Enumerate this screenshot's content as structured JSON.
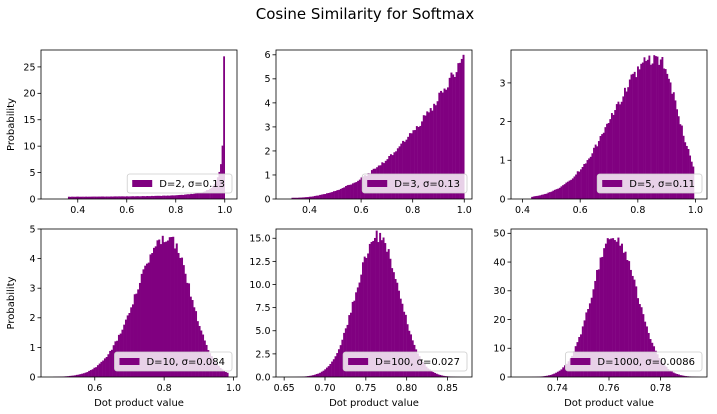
{
  "suptitle": "Cosine Similarity for Softmax",
  "colors": {
    "bar": "#800080",
    "axis": "#000000",
    "legend_bg": "#ffffff"
  },
  "chart_data": [
    {
      "type": "bar",
      "bins": 100,
      "xlabel": "",
      "ylabel": "Probability",
      "xlim": [
        0.25,
        1.05
      ],
      "ylim": [
        0,
        28.2
      ],
      "xticks": [
        0.4,
        0.6,
        0.8,
        1.0
      ],
      "xtick_labels": [
        "0.4",
        "0.6",
        "0.8",
        "1.0"
      ],
      "yticks": [
        0,
        5,
        10,
        15,
        20,
        25
      ],
      "ytick_labels": [
        "0",
        "5",
        "10",
        "15",
        "20",
        "25"
      ],
      "legend": {
        "placement": "lower-right",
        "label": "D=2, σ=0.13"
      },
      "dist": {
        "kind": "exp_tail",
        "min": 0.36,
        "max": 1.0,
        "floor": 0.35,
        "peak": 27
      }
    },
    {
      "type": "bar",
      "bins": 100,
      "xlabel": "",
      "ylabel": "",
      "xlim": [
        0.27,
        1.03
      ],
      "ylim": [
        0,
        6.2
      ],
      "xticks": [
        0.4,
        0.6,
        0.8,
        1.0
      ],
      "xtick_labels": [
        "0.4",
        "0.6",
        "0.8",
        "1.0"
      ],
      "yticks": [
        0,
        1,
        2,
        3,
        4,
        5,
        6
      ],
      "ytick_labels": [
        "0",
        "1",
        "2",
        "3",
        "4",
        "5",
        "6"
      ],
      "legend": {
        "placement": "lower-right",
        "label": "D=3, σ=0.13"
      },
      "dist": {
        "kind": "ramp",
        "min": 0.33,
        "max": 1.0,
        "start": 0.05,
        "peak": 6.0,
        "power": 2.2
      }
    },
    {
      "type": "bar",
      "bins": 100,
      "xlabel": "",
      "ylabel": "",
      "xlim": [
        0.36,
        1.04
      ],
      "ylim": [
        0,
        3.85
      ],
      "xticks": [
        0.4,
        0.6,
        0.8,
        1.0
      ],
      "xtick_labels": [
        "0.4",
        "0.6",
        "0.8",
        "1.0"
      ],
      "yticks": [
        0,
        1,
        2,
        3
      ],
      "ytick_labels": [
        "0",
        "1",
        "2",
        "3"
      ],
      "legend": {
        "placement": "lower-right",
        "label": "D=5, σ=0.11"
      },
      "dist": {
        "kind": "skew",
        "min": 0.43,
        "max": 0.995,
        "mode": 0.865,
        "peak": 3.65,
        "sl": 0.15,
        "sr": 0.075
      }
    },
    {
      "type": "bar",
      "bins": 100,
      "xlabel": "Dot product value",
      "ylabel": "Probability",
      "xlim": [
        0.445,
        1.01
      ],
      "ylim": [
        0,
        5
      ],
      "xticks": [
        0.6,
        0.8,
        1.0
      ],
      "xtick_labels": [
        "0.6",
        "0.8",
        "1.0"
      ],
      "yticks": [
        0,
        1,
        2,
        3,
        4,
        5
      ],
      "ytick_labels": [
        "0",
        "1",
        "2",
        "3",
        "4",
        "5"
      ],
      "legend": {
        "placement": "lower-right",
        "label": "D=10, σ=0.084"
      },
      "dist": {
        "kind": "skew",
        "min": 0.48,
        "max": 0.985,
        "mode": 0.81,
        "peak": 4.75,
        "sl": 0.09,
        "sr": 0.065
      }
    },
    {
      "type": "bar",
      "bins": 100,
      "xlabel": "Dot product value",
      "ylabel": "",
      "xlim": [
        0.64,
        0.88
      ],
      "ylim": [
        0,
        16
      ],
      "xticks": [
        0.65,
        0.7,
        0.75,
        0.8,
        0.85
      ],
      "xtick_labels": [
        "0.65",
        "0.70",
        "0.75",
        "0.80",
        "0.85"
      ],
      "yticks": [
        0,
        2.5,
        5,
        7.5,
        10,
        12.5,
        15
      ],
      "ytick_labels": [
        "0.0",
        "2.5",
        "5.0",
        "7.5",
        "10.0",
        "12.5",
        "15.0"
      ],
      "legend": {
        "placement": "lower-right",
        "label": "D=100, σ=0.027"
      },
      "dist": {
        "kind": "skew",
        "min": 0.655,
        "max": 0.865,
        "mode": 0.765,
        "peak": 15.2,
        "sl": 0.027,
        "sr": 0.026
      }
    },
    {
      "type": "bar",
      "bins": 100,
      "xlabel": "Dot product value",
      "ylabel": "",
      "xlim": [
        0.722,
        0.798
      ],
      "ylim": [
        0,
        51.5
      ],
      "xticks": [
        0.74,
        0.76,
        0.78
      ],
      "xtick_labels": [
        "0.74",
        "0.76",
        "0.78"
      ],
      "yticks": [
        0,
        10,
        20,
        30,
        40,
        50
      ],
      "ytick_labels": [
        "0",
        "10",
        "20",
        "30",
        "40",
        "50"
      ],
      "legend": {
        "placement": "lower-right",
        "label": "D=1000, σ=0.0086"
      },
      "dist": {
        "kind": "skew",
        "min": 0.726,
        "max": 0.795,
        "mode": 0.762,
        "peak": 48.5,
        "sl": 0.0085,
        "sr": 0.0088
      }
    }
  ]
}
